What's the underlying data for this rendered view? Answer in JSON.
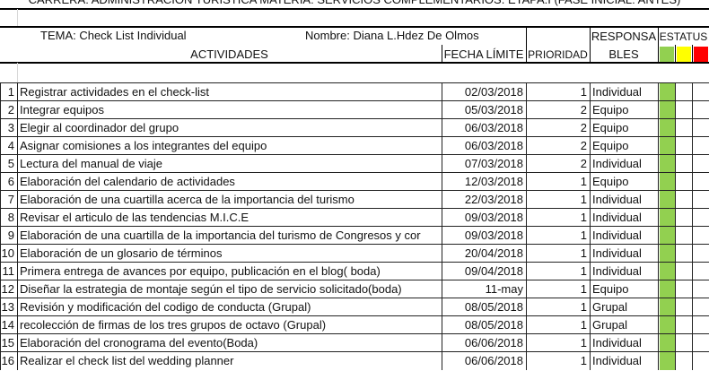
{
  "title": "CARRERA: ADMINISTRACIÓN TURÍSTICA  MATERIA: SERVICIOS COMPLEMENTARIOS.        ETAPA:I (FASE INICIAL: ANTES)",
  "tema": "TEMA: Check List Individual",
  "nombre": "Nombre: Diana L.Hdez De Olmos",
  "headers": {
    "actividades": "ACTIVIDADES",
    "fecha": "FECHA LÍMITE",
    "prioridad": "PRIORIDAD",
    "responsables_1": "RESPONSA",
    "responsables_2": "BLES",
    "estatus": "ESTATUS"
  },
  "status_colors": {
    "green": "#92d050",
    "yellow": "#ffff00",
    "red": "#ff0000"
  },
  "rows": [
    {
      "n": "1",
      "act": "Registrar actividades en el check-list",
      "fecha": "02/03/2018",
      "p": "1",
      "resp": "Individual",
      "status": "green"
    },
    {
      "n": "2",
      "act": "Integrar equipos",
      "fecha": "05/03/2018",
      "p": "2",
      "resp": "Equipo",
      "status": "green"
    },
    {
      "n": "3",
      "act": "Elegir al coordinador del grupo",
      "fecha": "06/03/2018",
      "p": "2",
      "resp": "Equipo",
      "status": "green"
    },
    {
      "n": "4",
      "act": "Asignar comisiones a los integrantes del equipo",
      "fecha": "06/03/2018",
      "p": "2",
      "resp": "Equipo",
      "status": "green"
    },
    {
      "n": "5",
      "act": "Lectura del manual de viaje",
      "fecha": "07/03/2018",
      "p": "2",
      "resp": "Individual",
      "status": "green"
    },
    {
      "n": "6",
      "act": "Elaboración del calendario de actividades",
      "fecha": "12/03/2018",
      "p": "1",
      "resp": "Equipo",
      "status": "green"
    },
    {
      "n": "7",
      "act": "Elaboración de una cuartilla acerca de la importancia del turismo",
      "fecha": "22/03/2018",
      "p": "1",
      "resp": "Individual",
      "status": "green"
    },
    {
      "n": "8",
      "act": "Revisar el articulo de las tendencias M.I.C.E",
      "fecha": "09/03/2018",
      "p": "1",
      "resp": "Individual",
      "status": "green"
    },
    {
      "n": "9",
      "act": "Elaboración de una cuartilla de la importancia del turismo de Congresos y cor",
      "fecha": "09/03/2018",
      "p": "1",
      "resp": "Individual",
      "status": "green"
    },
    {
      "n": "10",
      "act": "Elaboración de un glosario de términos",
      "fecha": "20/04/2018",
      "p": "1",
      "resp": "Individual",
      "status": "green"
    },
    {
      "n": "11",
      "act": "Primera entrega de avances por equipo, publicación en el blog( boda)",
      "fecha": "09/04/2018",
      "p": "1",
      "resp": "Individual",
      "status": "green"
    },
    {
      "n": "12",
      "act": " Diseñar la estrategia de montaje según el tipo de servicio solicitado(boda)",
      "fecha": "11-may",
      "p": "1",
      "resp": "Equipo",
      "status": "green"
    },
    {
      "n": "13",
      "act": "Revisión y modificación del codigo de conducta (Grupal)",
      "fecha": "08/05/2018",
      "p": "1",
      "resp": "Grupal",
      "status": "green"
    },
    {
      "n": "14",
      "act": "recolección de firmas de los tres grupos de octavo (Grupal)",
      "fecha": "08/05/2018",
      "p": "1",
      "resp": "Grupal",
      "status": "green"
    },
    {
      "n": "15",
      "act": "Elaboración del cronograma del evento(Boda)",
      "fecha": "06/06/2018",
      "p": "1",
      "resp": "Individual",
      "status": "green"
    },
    {
      "n": "16",
      "act": "Realizar el check list del wedding planner",
      "fecha": "06/06/2018",
      "p": "1",
      "resp": "Individual",
      "status": "green"
    }
  ]
}
